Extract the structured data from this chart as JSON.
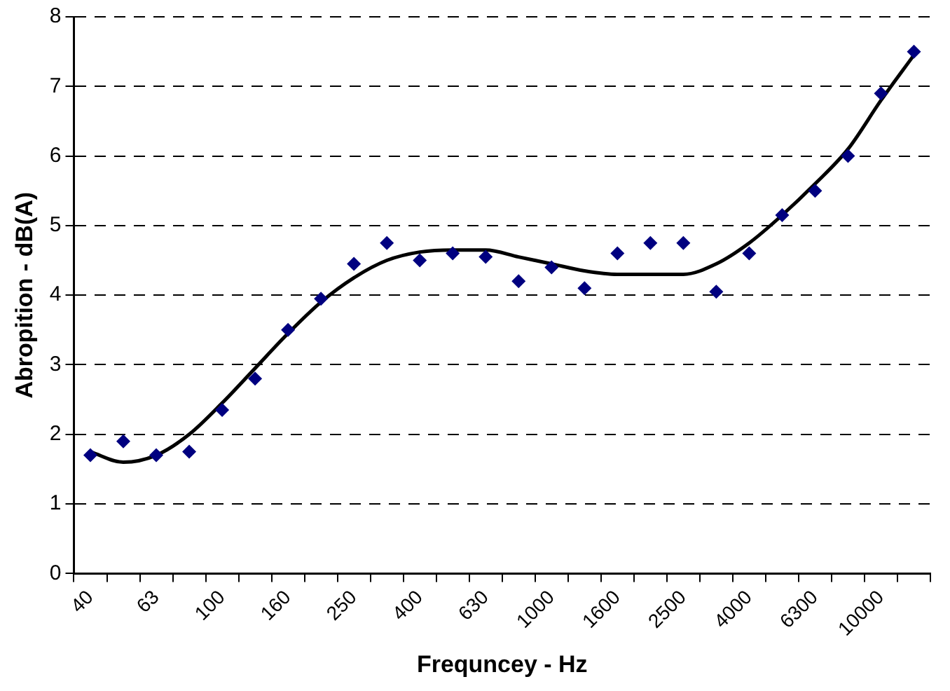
{
  "chart_data": {
    "type": "scatter",
    "xlabel": "Frequncey - Hz",
    "ylabel": "Abropition - dB(A)",
    "categories": [
      "40",
      null,
      "63",
      null,
      "100",
      null,
      "160",
      null,
      "250",
      null,
      "400",
      null,
      "630",
      null,
      "1000",
      null,
      "1600",
      null,
      "2500",
      null,
      "4000",
      null,
      "6300",
      null,
      "10000",
      null
    ],
    "series": [
      {
        "color": "#000080",
        "marker": "diamond",
        "values": [
          1.7,
          1.9,
          1.7,
          1.75,
          2.35,
          2.8,
          3.5,
          3.95,
          4.45,
          4.75,
          4.5,
          4.6,
          4.55,
          4.2,
          4.4,
          4.1,
          4.6,
          4.75,
          4.75,
          4.05,
          4.6,
          5.15,
          5.5,
          6.0,
          6.9,
          7.5
        ]
      },
      {
        "type": "line",
        "color": "#000000",
        "marker": "none",
        "values": [
          1.75,
          1.6,
          1.7,
          2.0,
          2.45,
          2.95,
          3.45,
          3.9,
          4.25,
          4.5,
          4.62,
          4.65,
          4.65,
          4.55,
          4.45,
          4.35,
          4.3,
          4.3,
          4.3,
          4.45,
          4.75,
          5.15,
          5.6,
          6.1,
          6.8,
          7.45
        ]
      }
    ],
    "ylim": [
      0,
      8
    ],
    "yticks": [
      0,
      1,
      2,
      3,
      4,
      5,
      6,
      7,
      8
    ],
    "grid": "y",
    "legend": false
  }
}
